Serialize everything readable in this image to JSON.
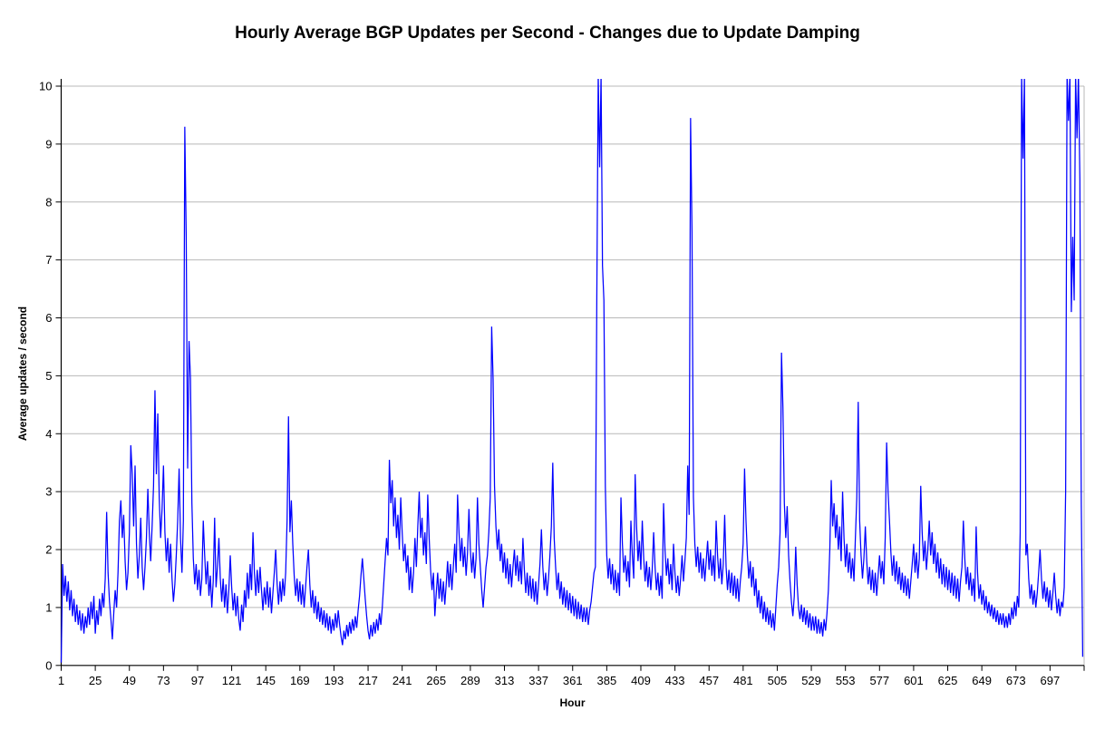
{
  "chart_data": {
    "type": "line",
    "title": "Hourly Average BGP Updates per Second - Changes due to Update Damping",
    "xlabel": "Hour",
    "ylabel": "Average updates / second",
    "xlim": [
      1,
      721
    ],
    "ylim": [
      0,
      10
    ],
    "x_ticks": [
      1,
      25,
      49,
      73,
      97,
      121,
      145,
      169,
      193,
      217,
      241,
      265,
      289,
      313,
      337,
      361,
      385,
      409,
      433,
      457,
      481,
      505,
      529,
      553,
      577,
      601,
      625,
      649,
      673,
      697
    ],
    "y_ticks": [
      0,
      1,
      2,
      3,
      4,
      5,
      6,
      7,
      8,
      9,
      10
    ],
    "grid": "horizontal-major",
    "legend": "none",
    "series": [
      {
        "x_start": 1,
        "x_step": 1,
        "clipped_above": 10,
        "values": [
          0.05,
          1.75,
          1.2,
          1.55,
          1.1,
          1.45,
          0.95,
          1.3,
          0.85,
          1.15,
          0.75,
          1.05,
          0.7,
          0.95,
          0.6,
          0.9,
          0.55,
          0.85,
          0.65,
          1.0,
          0.7,
          1.1,
          0.8,
          1.2,
          0.55,
          0.95,
          0.7,
          1.15,
          0.85,
          1.25,
          1.0,
          1.5,
          2.65,
          1.6,
          1.1,
          0.8,
          0.45,
          0.9,
          1.3,
          1.0,
          1.6,
          2.5,
          2.85,
          2.2,
          2.6,
          1.8,
          1.3,
          1.6,
          2.3,
          3.8,
          3.3,
          2.4,
          3.45,
          2.1,
          1.5,
          1.9,
          2.55,
          1.7,
          1.3,
          1.7,
          2.2,
          3.05,
          2.3,
          1.8,
          2.4,
          3.1,
          4.75,
          3.3,
          4.35,
          2.9,
          2.2,
          2.7,
          3.45,
          2.3,
          1.8,
          2.2,
          1.6,
          2.1,
          1.5,
          1.1,
          1.4,
          1.9,
          2.5,
          3.4,
          2.2,
          1.6,
          2.5,
          9.3,
          7.4,
          3.4,
          5.6,
          4.95,
          2.8,
          1.85,
          1.4,
          1.75,
          1.3,
          1.65,
          1.2,
          1.5,
          2.5,
          1.9,
          1.4,
          1.8,
          1.2,
          1.55,
          1.0,
          1.45,
          2.55,
          1.35,
          1.7,
          2.2,
          1.5,
          1.1,
          1.5,
          1.0,
          1.4,
          0.9,
          1.3,
          1.9,
          1.35,
          0.95,
          1.25,
          0.85,
          1.2,
          0.8,
          0.6,
          1.05,
          0.75,
          1.3,
          1.0,
          1.6,
          1.15,
          1.75,
          1.3,
          2.3,
          1.6,
          1.2,
          1.65,
          1.25,
          1.7,
          1.3,
          0.95,
          1.35,
          1.05,
          1.45,
          1.0,
          1.35,
          0.9,
          1.25,
          1.6,
          2.0,
          1.4,
          1.05,
          1.45,
          1.1,
          1.5,
          1.2,
          1.6,
          2.5,
          4.3,
          2.3,
          2.85,
          2.1,
          1.55,
          1.2,
          1.5,
          1.1,
          1.45,
          1.05,
          1.4,
          1.0,
          1.35,
          1.7,
          2.0,
          1.4,
          1.0,
          1.3,
          0.9,
          1.2,
          0.8,
          1.1,
          0.75,
          1.0,
          0.7,
          0.95,
          0.65,
          0.9,
          0.6,
          0.85,
          0.55,
          0.8,
          0.6,
          0.9,
          0.65,
          0.95,
          0.7,
          0.5,
          0.35,
          0.6,
          0.45,
          0.7,
          0.5,
          0.75,
          0.55,
          0.8,
          0.6,
          0.85,
          0.65,
          0.95,
          1.2,
          1.55,
          1.85,
          1.5,
          1.15,
          0.85,
          0.6,
          0.45,
          0.7,
          0.5,
          0.75,
          0.55,
          0.8,
          0.6,
          0.9,
          0.7,
          1.0,
          1.4,
          1.8,
          2.2,
          1.9,
          3.55,
          2.8,
          3.2,
          2.4,
          2.9,
          2.2,
          2.6,
          2.0,
          2.9,
          2.3,
          1.8,
          2.1,
          1.6,
          1.9,
          1.3,
          1.7,
          1.25,
          1.6,
          2.2,
          1.7,
          2.4,
          3.0,
          2.2,
          2.55,
          1.9,
          2.3,
          1.75,
          2.95,
          2.2,
          1.65,
          1.3,
          1.6,
          0.85,
          1.25,
          1.6,
          1.15,
          1.5,
          1.1,
          1.45,
          1.05,
          1.4,
          1.8,
          1.35,
          1.75,
          1.3,
          1.7,
          2.1,
          1.6,
          2.95,
          2.3,
          1.8,
          2.2,
          1.7,
          2.05,
          1.55,
          1.95,
          2.7,
          2.0,
          1.6,
          1.95,
          1.5,
          1.85,
          2.9,
          2.1,
          1.7,
          1.3,
          1.0,
          1.35,
          1.7,
          1.9,
          2.3,
          2.9,
          5.85,
          4.95,
          3.1,
          2.4,
          2.0,
          2.35,
          1.8,
          2.1,
          1.6,
          1.95,
          1.5,
          1.85,
          1.4,
          1.75,
          1.35,
          1.7,
          2.0,
          1.55,
          1.9,
          1.45,
          1.8,
          1.4,
          2.2,
          1.65,
          1.25,
          1.6,
          1.2,
          1.55,
          1.15,
          1.5,
          1.1,
          1.45,
          1.05,
          1.4,
          1.75,
          2.35,
          1.7,
          1.3,
          1.6,
          1.2,
          1.5,
          1.9,
          2.4,
          3.5,
          2.2,
          1.7,
          1.3,
          1.6,
          1.15,
          1.45,
          1.05,
          1.35,
          1.0,
          1.3,
          0.95,
          1.25,
          0.9,
          1.2,
          0.85,
          1.15,
          0.8,
          1.1,
          0.8,
          1.05,
          0.75,
          1.0,
          0.75,
          1.0,
          0.7,
          0.95,
          1.1,
          1.35,
          1.6,
          1.7,
          6.35,
          10.2,
          8.6,
          10.2,
          6.9,
          6.3,
          3.1,
          1.9,
          1.5,
          1.85,
          1.4,
          1.75,
          1.3,
          1.65,
          1.25,
          1.6,
          1.2,
          2.9,
          2.1,
          1.6,
          1.9,
          1.45,
          1.8,
          1.35,
          2.5,
          1.9,
          1.5,
          3.3,
          2.4,
          1.8,
          2.15,
          1.65,
          2.5,
          1.85,
          1.45,
          1.8,
          1.35,
          1.7,
          1.3,
          1.65,
          2.3,
          1.7,
          1.3,
          1.6,
          1.2,
          1.55,
          1.15,
          2.8,
          2.0,
          1.55,
          1.85,
          1.4,
          1.75,
          1.3,
          2.1,
          1.6,
          1.25,
          1.55,
          1.2,
          1.5,
          1.9,
          1.45,
          1.8,
          2.2,
          3.45,
          2.6,
          9.45,
          7.5,
          2.9,
          2.1,
          1.7,
          2.05,
          1.6,
          1.95,
          1.5,
          1.85,
          1.45,
          1.8,
          2.15,
          1.65,
          2.0,
          1.55,
          1.9,
          1.45,
          2.5,
          1.9,
          1.5,
          1.85,
          1.4,
          1.75,
          2.6,
          1.7,
          1.3,
          1.65,
          1.25,
          1.6,
          1.2,
          1.55,
          1.15,
          1.5,
          1.1,
          1.45,
          1.7,
          2.1,
          3.4,
          2.5,
          1.9,
          1.5,
          1.8,
          1.35,
          1.7,
          1.2,
          1.5,
          1.0,
          1.3,
          0.9,
          1.2,
          0.8,
          1.1,
          0.75,
          1.0,
          0.7,
          0.95,
          0.65,
          0.9,
          0.6,
          1.0,
          1.4,
          1.7,
          2.3,
          5.4,
          4.45,
          2.8,
          2.2,
          2.75,
          1.9,
          1.45,
          1.1,
          0.85,
          1.2,
          2.05,
          1.4,
          1.0,
          0.8,
          1.05,
          0.75,
          1.0,
          0.7,
          0.95,
          0.65,
          0.9,
          0.6,
          0.85,
          0.6,
          0.85,
          0.55,
          0.8,
          0.55,
          0.75,
          0.5,
          0.8,
          0.6,
          0.9,
          1.3,
          2.0,
          3.2,
          2.4,
          2.8,
          2.2,
          2.6,
          2.0,
          2.4,
          1.8,
          3.0,
          2.2,
          1.7,
          2.1,
          1.6,
          1.95,
          1.5,
          1.85,
          1.45,
          2.2,
          2.9,
          4.55,
          2.5,
          1.9,
          1.5,
          1.85,
          2.4,
          1.8,
          1.4,
          1.7,
          1.3,
          1.65,
          1.25,
          1.6,
          1.2,
          1.55,
          1.9,
          1.5,
          1.8,
          1.4,
          2.2,
          3.85,
          3.0,
          2.5,
          1.95,
          1.55,
          1.9,
          1.45,
          1.8,
          1.4,
          1.7,
          1.3,
          1.6,
          1.25,
          1.55,
          1.2,
          1.5,
          1.15,
          1.45,
          1.75,
          2.1,
          1.6,
          1.95,
          1.5,
          1.85,
          3.1,
          2.3,
          1.8,
          2.15,
          1.65,
          2.0,
          2.5,
          1.9,
          2.3,
          1.75,
          2.1,
          1.6,
          1.95,
          1.5,
          1.85,
          1.4,
          1.75,
          1.35,
          1.7,
          1.3,
          1.65,
          1.25,
          1.6,
          1.2,
          1.55,
          1.15,
          1.5,
          1.1,
          1.45,
          1.7,
          2.5,
          1.85,
          1.4,
          1.7,
          1.3,
          1.6,
          1.2,
          1.5,
          1.1,
          2.4,
          1.6,
          1.15,
          1.4,
          1.05,
          1.3,
          0.95,
          1.2,
          0.9,
          1.1,
          0.85,
          1.05,
          0.8,
          1.0,
          0.75,
          0.95,
          0.7,
          0.9,
          0.7,
          0.9,
          0.65,
          0.85,
          0.65,
          0.9,
          0.7,
          1.0,
          0.8,
          1.1,
          0.85,
          1.2,
          1.0,
          2.3,
          10.2,
          8.75,
          10.2,
          1.9,
          2.1,
          1.5,
          1.15,
          1.4,
          1.05,
          1.3,
          1.0,
          1.25,
          1.6,
          2.0,
          1.5,
          1.15,
          1.45,
          1.1,
          1.35,
          1.0,
          1.3,
          0.95,
          1.25,
          1.6,
          1.2,
          0.9,
          1.15,
          0.85,
          1.1,
          1.0,
          1.35,
          3.0,
          10.2,
          9.4,
          10.2,
          6.1,
          7.4,
          6.3,
          10.2,
          9.1,
          10.2,
          8.4,
          2.8,
          0.15
        ]
      }
    ]
  },
  "colors": {
    "series": "#0000ff",
    "grid": "#b8b8b8",
    "axis": "#000000",
    "background": "#ffffff",
    "text": "#000000"
  }
}
